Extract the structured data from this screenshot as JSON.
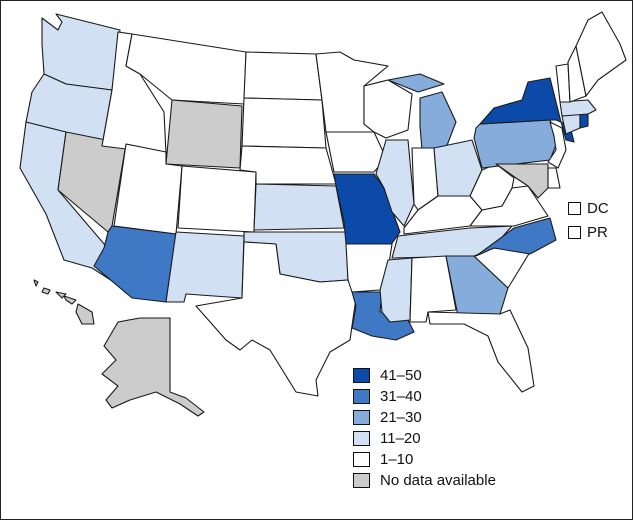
{
  "colors": {
    "41-50": "#0b4aa8",
    "31-40": "#3f78c4",
    "21-30": "#86acdb",
    "11-20": "#d2e0f3",
    "1-10": "#ffffff",
    "no_data": "#cccccc"
  },
  "states": {
    "WA": "11-20",
    "OR": "11-20",
    "CA": "11-20",
    "NV": "no_data",
    "ID": "1-10",
    "MT": "1-10",
    "WY": "no_data",
    "UT": "1-10",
    "CO": "1-10",
    "AZ": "31-40",
    "NM": "11-20",
    "ND": "1-10",
    "SD": "1-10",
    "NE": "1-10",
    "KS": "11-20",
    "OK": "11-20",
    "TX": "1-10",
    "MN": "1-10",
    "IA": "1-10",
    "MO": "41-50",
    "AR": "1-10",
    "LA": "31-40",
    "WI": "1-10",
    "IL": "11-20",
    "MI": "21-30",
    "IN": "1-10",
    "OH": "11-20",
    "KY": "1-10",
    "TN": "11-20",
    "MS": "11-20",
    "AL": "1-10",
    "GA": "21-30",
    "FL": "1-10",
    "SC": "1-10",
    "NC": "31-40",
    "VA": "1-10",
    "WV": "1-10",
    "PA": "21-30",
    "NY": "41-50",
    "VT": "1-10",
    "NH": "1-10",
    "ME": "1-10",
    "MA": "11-20",
    "RI": "41-50",
    "CT": "11-20",
    "NJ": "1-10",
    "DE": "1-10",
    "MD": "no_data",
    "AK": "no_data",
    "HI": "no_data"
  },
  "territories": [
    {
      "name": "DC",
      "bin": "1-10"
    },
    {
      "name": "PR",
      "bin": "1-10"
    }
  ],
  "legend": [
    {
      "bin": "41-50",
      "label": "41–50"
    },
    {
      "bin": "31-40",
      "label": "31–40"
    },
    {
      "bin": "21-30",
      "label": "21–30"
    },
    {
      "bin": "11-20",
      "label": "11–20"
    },
    {
      "bin": "1-10",
      "label": "1–10"
    },
    {
      "bin": "no_data",
      "label": "No data available"
    }
  ]
}
